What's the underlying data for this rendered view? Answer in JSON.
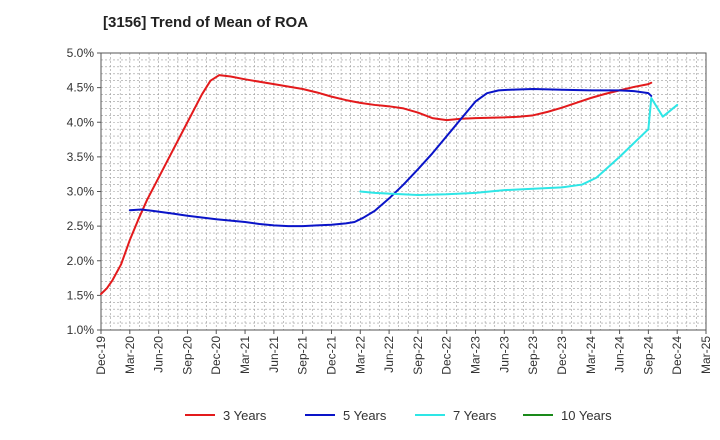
{
  "chart_data": {
    "type": "line",
    "title": "[3156]  Trend of Mean of ROA",
    "xlabel": "",
    "ylabel": "",
    "ylim": [
      1.0,
      5.0
    ],
    "y_ticks": [
      "1.0%",
      "1.5%",
      "2.0%",
      "2.5%",
      "3.0%",
      "3.5%",
      "4.0%",
      "4.5%",
      "5.0%"
    ],
    "x_ticks": [
      "Dec-19",
      "Mar-20",
      "Jun-20",
      "Sep-20",
      "Dec-20",
      "Mar-21",
      "Jun-21",
      "Sep-21",
      "Dec-21",
      "Mar-22",
      "Jun-22",
      "Sep-22",
      "Dec-22",
      "Mar-23",
      "Jun-23",
      "Sep-23",
      "Dec-23",
      "Mar-24",
      "Jun-24",
      "Sep-24",
      "Dec-24",
      "Mar-25"
    ],
    "grid": true,
    "legend_position": "bottom",
    "series": [
      {
        "name": "3 Years",
        "color": "#e31a1c",
        "points": [
          [
            0,
            1.52
          ],
          [
            0.2,
            1.6
          ],
          [
            0.4,
            1.72
          ],
          [
            0.7,
            1.95
          ],
          [
            1.0,
            2.3
          ],
          [
            1.3,
            2.6
          ],
          [
            1.6,
            2.88
          ],
          [
            2.0,
            3.2
          ],
          [
            2.5,
            3.6
          ],
          [
            3.0,
            4.0
          ],
          [
            3.5,
            4.4
          ],
          [
            3.8,
            4.6
          ],
          [
            4.1,
            4.68
          ],
          [
            4.5,
            4.66
          ],
          [
            5.0,
            4.62
          ],
          [
            6.0,
            4.55
          ],
          [
            7.0,
            4.48
          ],
          [
            7.5,
            4.43
          ],
          [
            8.0,
            4.37
          ],
          [
            8.5,
            4.32
          ],
          [
            9.0,
            4.28
          ],
          [
            9.5,
            4.25
          ],
          [
            10.0,
            4.23
          ],
          [
            10.5,
            4.2
          ],
          [
            11.0,
            4.14
          ],
          [
            11.5,
            4.06
          ],
          [
            12.0,
            4.03
          ],
          [
            12.5,
            4.05
          ],
          [
            13.0,
            4.06
          ],
          [
            14.0,
            4.07
          ],
          [
            14.5,
            4.08
          ],
          [
            15.0,
            4.1
          ],
          [
            15.5,
            4.15
          ],
          [
            16.0,
            4.21
          ],
          [
            16.5,
            4.28
          ],
          [
            17.0,
            4.35
          ],
          [
            17.5,
            4.41
          ],
          [
            18.0,
            4.46
          ],
          [
            18.5,
            4.51
          ],
          [
            19.0,
            4.55
          ],
          [
            19.1,
            4.57
          ]
        ]
      },
      {
        "name": "5 Years",
        "color": "#0a14c8",
        "points": [
          [
            1.0,
            2.73
          ],
          [
            1.4,
            2.74
          ],
          [
            1.8,
            2.72
          ],
          [
            2.5,
            2.68
          ],
          [
            3.0,
            2.65
          ],
          [
            4.0,
            2.6
          ],
          [
            5.0,
            2.56
          ],
          [
            5.5,
            2.53
          ],
          [
            6.0,
            2.51
          ],
          [
            6.5,
            2.5
          ],
          [
            7.0,
            2.5
          ],
          [
            7.5,
            2.51
          ],
          [
            8.0,
            2.52
          ],
          [
            8.5,
            2.54
          ],
          [
            8.8,
            2.56
          ],
          [
            9.1,
            2.62
          ],
          [
            9.5,
            2.72
          ],
          [
            10.0,
            2.9
          ],
          [
            10.5,
            3.1
          ],
          [
            11.0,
            3.32
          ],
          [
            11.5,
            3.55
          ],
          [
            12.0,
            3.8
          ],
          [
            12.5,
            4.05
          ],
          [
            13.0,
            4.3
          ],
          [
            13.4,
            4.42
          ],
          [
            13.8,
            4.46
          ],
          [
            14.2,
            4.47
          ],
          [
            15.0,
            4.48
          ],
          [
            16.0,
            4.47
          ],
          [
            17.0,
            4.46
          ],
          [
            18.0,
            4.46
          ],
          [
            18.5,
            4.45
          ],
          [
            19.0,
            4.42
          ],
          [
            19.1,
            4.38
          ]
        ]
      },
      {
        "name": "7 Years",
        "color": "#2ee6e6",
        "points": [
          [
            9.0,
            3.0
          ],
          [
            9.5,
            2.98
          ],
          [
            10.0,
            2.97
          ],
          [
            11.0,
            2.95
          ],
          [
            12.0,
            2.96
          ],
          [
            13.0,
            2.98
          ],
          [
            14.0,
            3.02
          ],
          [
            15.0,
            3.04
          ],
          [
            16.0,
            3.06
          ],
          [
            16.7,
            3.1
          ],
          [
            17.2,
            3.2
          ],
          [
            17.6,
            3.35
          ],
          [
            18.0,
            3.5
          ],
          [
            18.5,
            3.7
          ],
          [
            19.0,
            3.9
          ],
          [
            19.5,
            4.08
          ],
          [
            20.0,
            4.25
          ],
          [
            20.2,
            4.3
          ],
          [
            19.1,
            4.35
          ]
        ],
        "note_hidden": ""
      },
      {
        "name": "10 Years",
        "color": "#1a8a1a",
        "points": []
      }
    ]
  }
}
